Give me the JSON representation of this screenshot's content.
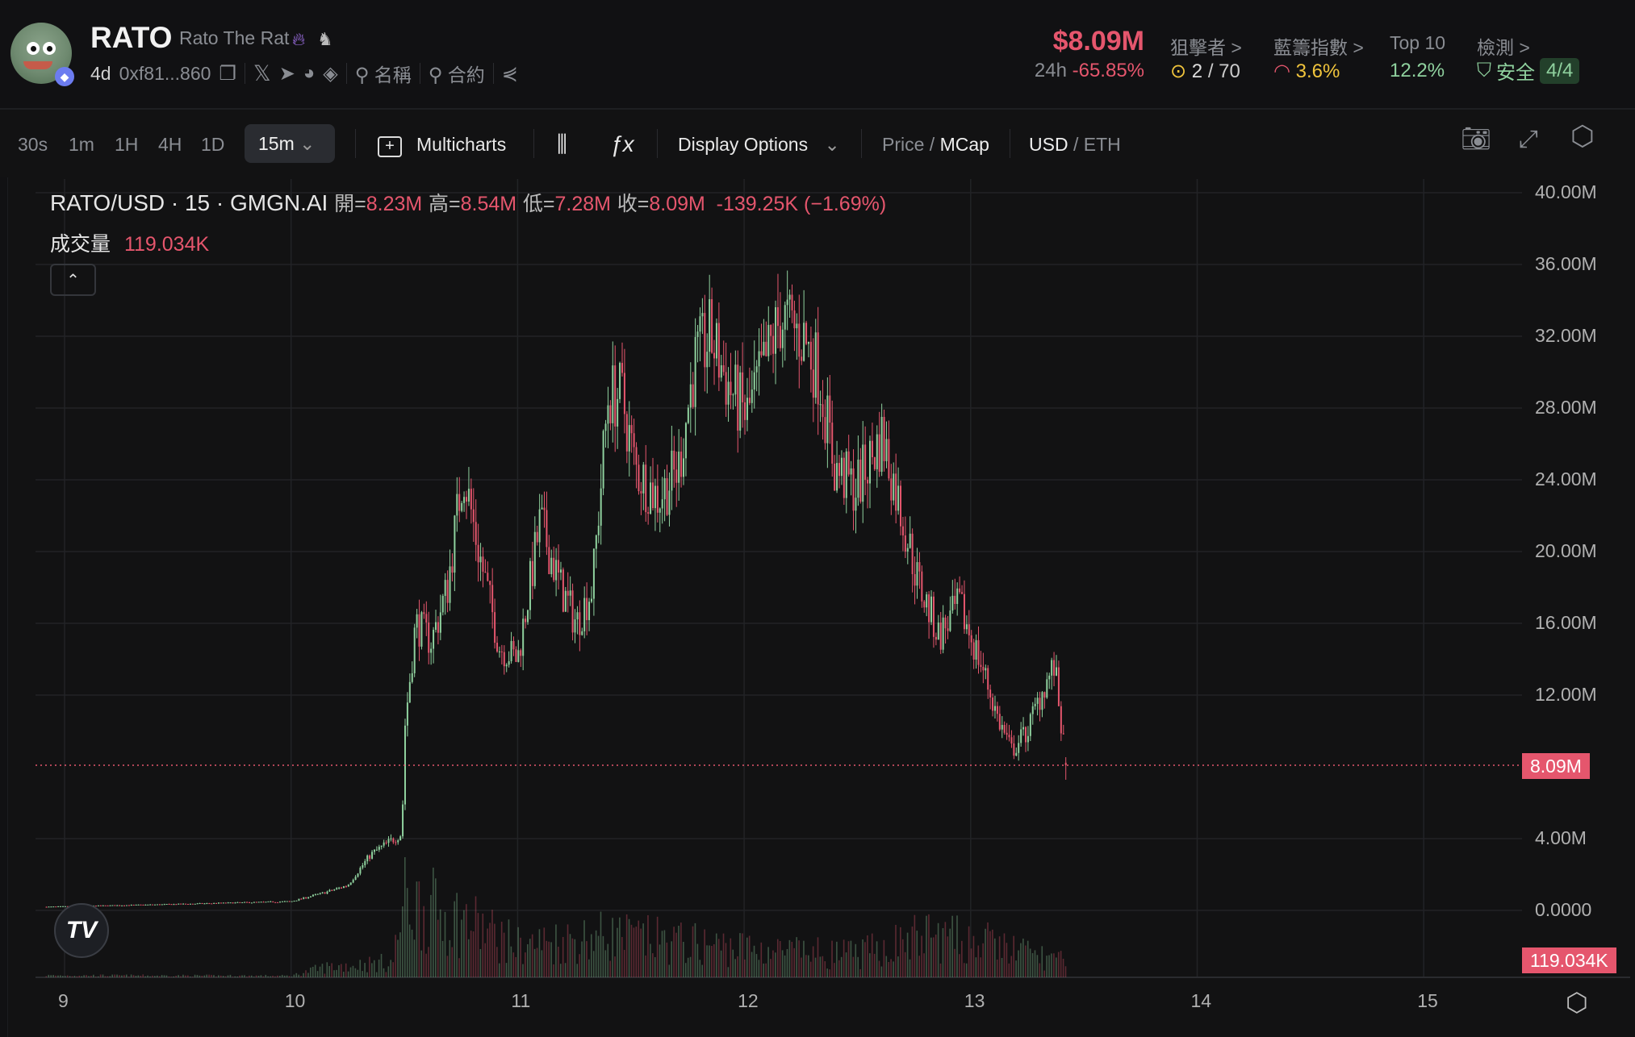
{
  "token": {
    "symbol": "RATO",
    "name": "Rato The Rat",
    "age": "4d",
    "address": "0xf81...860",
    "search_name": "名稱",
    "search_contract": "合約",
    "icons": [
      "flame-icon",
      "vc-icon",
      "copy-icon",
      "x-icon",
      "telegram-icon",
      "chart-site-icon",
      "dex-icon",
      "search-icon",
      "share-icon"
    ]
  },
  "stats": {
    "market_cap": "$8.09M",
    "change_label": "24h",
    "change_value": "-65.85%",
    "snipers_label": "狙擊者 >",
    "snipers_value": "2",
    "snipers_total": "/ 70",
    "bluechip_label": "藍籌指數 >",
    "bluechip_value": "3.6%",
    "top10_label": "Top 10",
    "top10_value": "12.2%",
    "audit_label": "檢測 >",
    "audit_value": "安全",
    "audit_badge": "4/4"
  },
  "toolbar": {
    "timeframes": [
      "30s",
      "1m",
      "1H",
      "4H",
      "1D"
    ],
    "selected_timeframe": "15m",
    "multicharts": "Multicharts",
    "display_options": "Display Options",
    "price": "Price",
    "mcap": "MCap",
    "usd": "USD",
    "eth": "ETH",
    "slash": "/"
  },
  "legend": {
    "pair": "RATO/USD · 15 · GMGN.AI",
    "open_label": "開=",
    "open": "8.23M",
    "high_label": "高=",
    "high": "8.54M",
    "low_label": "低=",
    "low": "7.28M",
    "close_label": "收=",
    "close": "8.09M",
    "change": "-139.25K (−1.69%)",
    "volume_label": "成交量",
    "volume": "119.034K"
  },
  "colors": {
    "up": "#8fd19e",
    "down": "#e5566d",
    "background": "#121213",
    "grid": "#222326"
  },
  "chart_data": {
    "type": "candlestick",
    "interval": "15m",
    "ylim": [
      0,
      40
    ],
    "y_ticks": [
      "40.00M",
      "36.00M",
      "32.00M",
      "28.00M",
      "24.00M",
      "20.00M",
      "16.00M",
      "12.00M",
      "4.00M",
      "0.0000"
    ],
    "x_ticks": [
      "9",
      "10",
      "11",
      "12",
      "13",
      "14",
      "15"
    ],
    "xlim": [
      8.92,
      15.5
    ],
    "grid": true,
    "current_price_label": "8.09M",
    "current_volume_label": "119.034K",
    "price_path": [
      [
        8.92,
        0.2
      ],
      [
        9.5,
        0.35
      ],
      [
        10.0,
        0.5
      ],
      [
        10.15,
        1.0
      ],
      [
        10.25,
        1.4
      ],
      [
        10.35,
        3.1
      ],
      [
        10.49,
        4.3
      ],
      [
        10.5,
        10
      ],
      [
        10.55,
        16
      ],
      [
        10.62,
        15
      ],
      [
        10.69,
        18
      ],
      [
        10.76,
        24.6
      ],
      [
        10.82,
        20.5
      ],
      [
        10.92,
        14.7
      ],
      [
        11.0,
        14
      ],
      [
        11.1,
        21.7
      ],
      [
        11.19,
        18
      ],
      [
        11.26,
        16
      ],
      [
        11.33,
        18
      ],
      [
        11.4,
        28.7
      ],
      [
        11.46,
        28.7
      ],
      [
        11.52,
        24.6
      ],
      [
        11.62,
        23
      ],
      [
        11.71,
        24.6
      ],
      [
        11.78,
        30.4
      ],
      [
        11.85,
        32
      ],
      [
        11.94,
        29
      ],
      [
        12.01,
        27.5
      ],
      [
        12.08,
        30
      ],
      [
        12.16,
        33
      ],
      [
        12.26,
        32
      ],
      [
        12.33,
        30
      ],
      [
        12.4,
        24.6
      ],
      [
        12.49,
        23.5
      ],
      [
        12.61,
        26.4
      ],
      [
        12.68,
        22.9
      ],
      [
        12.77,
        18.2
      ],
      [
        12.86,
        15.3
      ],
      [
        12.95,
        17
      ],
      [
        13.05,
        13.6
      ],
      [
        13.12,
        10.7
      ],
      [
        13.18,
        8.9
      ],
      [
        13.25,
        10
      ],
      [
        13.32,
        12.4
      ],
      [
        13.37,
        13.6
      ],
      [
        13.42,
        8.09
      ]
    ],
    "volume_profile_k": [
      [
        8.92,
        15
      ],
      [
        10.0,
        12
      ],
      [
        10.15,
        80
      ],
      [
        10.45,
        120
      ],
      [
        10.5,
        600
      ],
      [
        10.8,
        420
      ],
      [
        11.0,
        250
      ],
      [
        11.4,
        330
      ],
      [
        11.8,
        260
      ],
      [
        12.2,
        200
      ],
      [
        12.5,
        180
      ],
      [
        12.8,
        330
      ],
      [
        13.1,
        260
      ],
      [
        13.42,
        119.034
      ]
    ],
    "last_candle": {
      "open": 8.23,
      "high": 8.54,
      "low": 7.28,
      "close": 8.09
    }
  }
}
